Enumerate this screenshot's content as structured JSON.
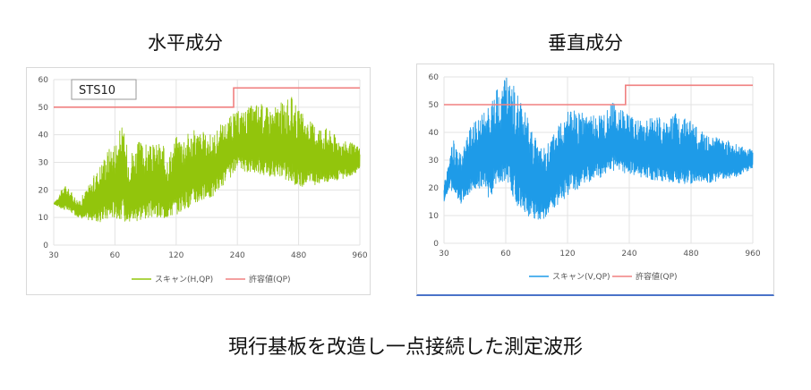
{
  "headings": {
    "left": "水平成分",
    "right": "垂直成分"
  },
  "caption": "現行基板を改造し一点接続した測定波形",
  "chart_data": [
    {
      "type": "line",
      "label_box": "STS10",
      "x_scale": "log",
      "xlim": [
        30,
        960
      ],
      "ylim": [
        0,
        60
      ],
      "x_ticks": [
        "30",
        "60",
        "120",
        "240",
        "480",
        "960"
      ],
      "y_ticks": [
        "0",
        "10",
        "20",
        "30",
        "40",
        "50",
        "60"
      ],
      "grid": true,
      "legend_position": "bottom",
      "series": [
        {
          "name": "スキャン(H,QP)",
          "color": "#92c50c",
          "envelope": [
            [
              30,
              15
            ],
            [
              33,
              13
            ],
            [
              36,
              12
            ],
            [
              40,
              10
            ],
            [
              45,
              9
            ],
            [
              50,
              8
            ],
            [
              55,
              9
            ],
            [
              60,
              10
            ],
            [
              70,
              8
            ],
            [
              80,
              9
            ],
            [
              90,
              10
            ],
            [
              100,
              9
            ],
            [
              120,
              11
            ],
            [
              150,
              15
            ],
            [
              180,
              17
            ],
            [
              200,
              21
            ],
            [
              240,
              27
            ],
            [
              300,
              26
            ],
            [
              400,
              24
            ],
            [
              480,
              21
            ],
            [
              600,
              22
            ],
            [
              800,
              24
            ],
            [
              960,
              27
            ]
          ],
          "peaks": [
            [
              30,
              15
            ],
            [
              34,
              22
            ],
            [
              40,
              16
            ],
            [
              48,
              26
            ],
            [
              55,
              35
            ],
            [
              60,
              38
            ],
            [
              65,
              44
            ],
            [
              70,
              34
            ],
            [
              80,
              38
            ],
            [
              90,
              36
            ],
            [
              100,
              38
            ],
            [
              110,
              33
            ],
            [
              120,
              40
            ],
            [
              150,
              42
            ],
            [
              180,
              40
            ],
            [
              200,
              44
            ],
            [
              230,
              48
            ],
            [
              270,
              50
            ],
            [
              300,
              52
            ],
            [
              350,
              50
            ],
            [
              400,
              52
            ],
            [
              450,
              54
            ],
            [
              480,
              49
            ],
            [
              550,
              45
            ],
            [
              650,
              43
            ],
            [
              800,
              38
            ],
            [
              960,
              36
            ]
          ]
        },
        {
          "name": "許容値(QP)",
          "color": "#f08080",
          "steps": [
            [
              30,
              50
            ],
            [
              230,
              50
            ],
            [
              230,
              57
            ],
            [
              960,
              57
            ]
          ]
        }
      ]
    },
    {
      "type": "line",
      "x_scale": "log",
      "xlim": [
        30,
        960
      ],
      "ylim": [
        0,
        60
      ],
      "x_ticks": [
        "30",
        "60",
        "120",
        "240",
        "480",
        "960"
      ],
      "y_ticks": [
        "0",
        "10",
        "20",
        "30",
        "40",
        "50",
        "60"
      ],
      "grid": true,
      "legend_position": "bottom",
      "series": [
        {
          "name": "スキャン(V,QP)",
          "color": "#1e9be8",
          "envelope": [
            [
              30,
              15
            ],
            [
              32,
              20
            ],
            [
              36,
              14
            ],
            [
              40,
              18
            ],
            [
              45,
              20
            ],
            [
              50,
              16
            ],
            [
              55,
              20
            ],
            [
              60,
              22
            ],
            [
              70,
              12
            ],
            [
              80,
              9
            ],
            [
              90,
              8
            ],
            [
              100,
              12
            ],
            [
              120,
              17
            ],
            [
              150,
              22
            ],
            [
              180,
              24
            ],
            [
              200,
              26
            ],
            [
              240,
              25
            ],
            [
              300,
              23
            ],
            [
              400,
              22
            ],
            [
              480,
              21
            ],
            [
              600,
              22
            ],
            [
              800,
              24
            ],
            [
              960,
              27
            ]
          ],
          "peaks": [
            [
              30,
              21
            ],
            [
              33,
              38
            ],
            [
              36,
              32
            ],
            [
              40,
              42
            ],
            [
              45,
              46
            ],
            [
              50,
              52
            ],
            [
              55,
              56
            ],
            [
              60,
              60
            ],
            [
              65,
              58
            ],
            [
              70,
              52
            ],
            [
              80,
              42
            ],
            [
              90,
              35
            ],
            [
              100,
              38
            ],
            [
              110,
              44
            ],
            [
              120,
              50
            ],
            [
              150,
              46
            ],
            [
              180,
              48
            ],
            [
              200,
              52
            ],
            [
              230,
              48
            ],
            [
              270,
              44
            ],
            [
              300,
              46
            ],
            [
              350,
              45
            ],
            [
              400,
              47
            ],
            [
              480,
              44
            ],
            [
              550,
              40
            ],
            [
              650,
              38
            ],
            [
              800,
              36
            ],
            [
              960,
              34
            ]
          ]
        },
        {
          "name": "許容値(QP)",
          "color": "#f08080",
          "steps": [
            [
              30,
              50
            ],
            [
              230,
              50
            ],
            [
              230,
              57
            ],
            [
              960,
              57
            ]
          ]
        }
      ]
    }
  ]
}
